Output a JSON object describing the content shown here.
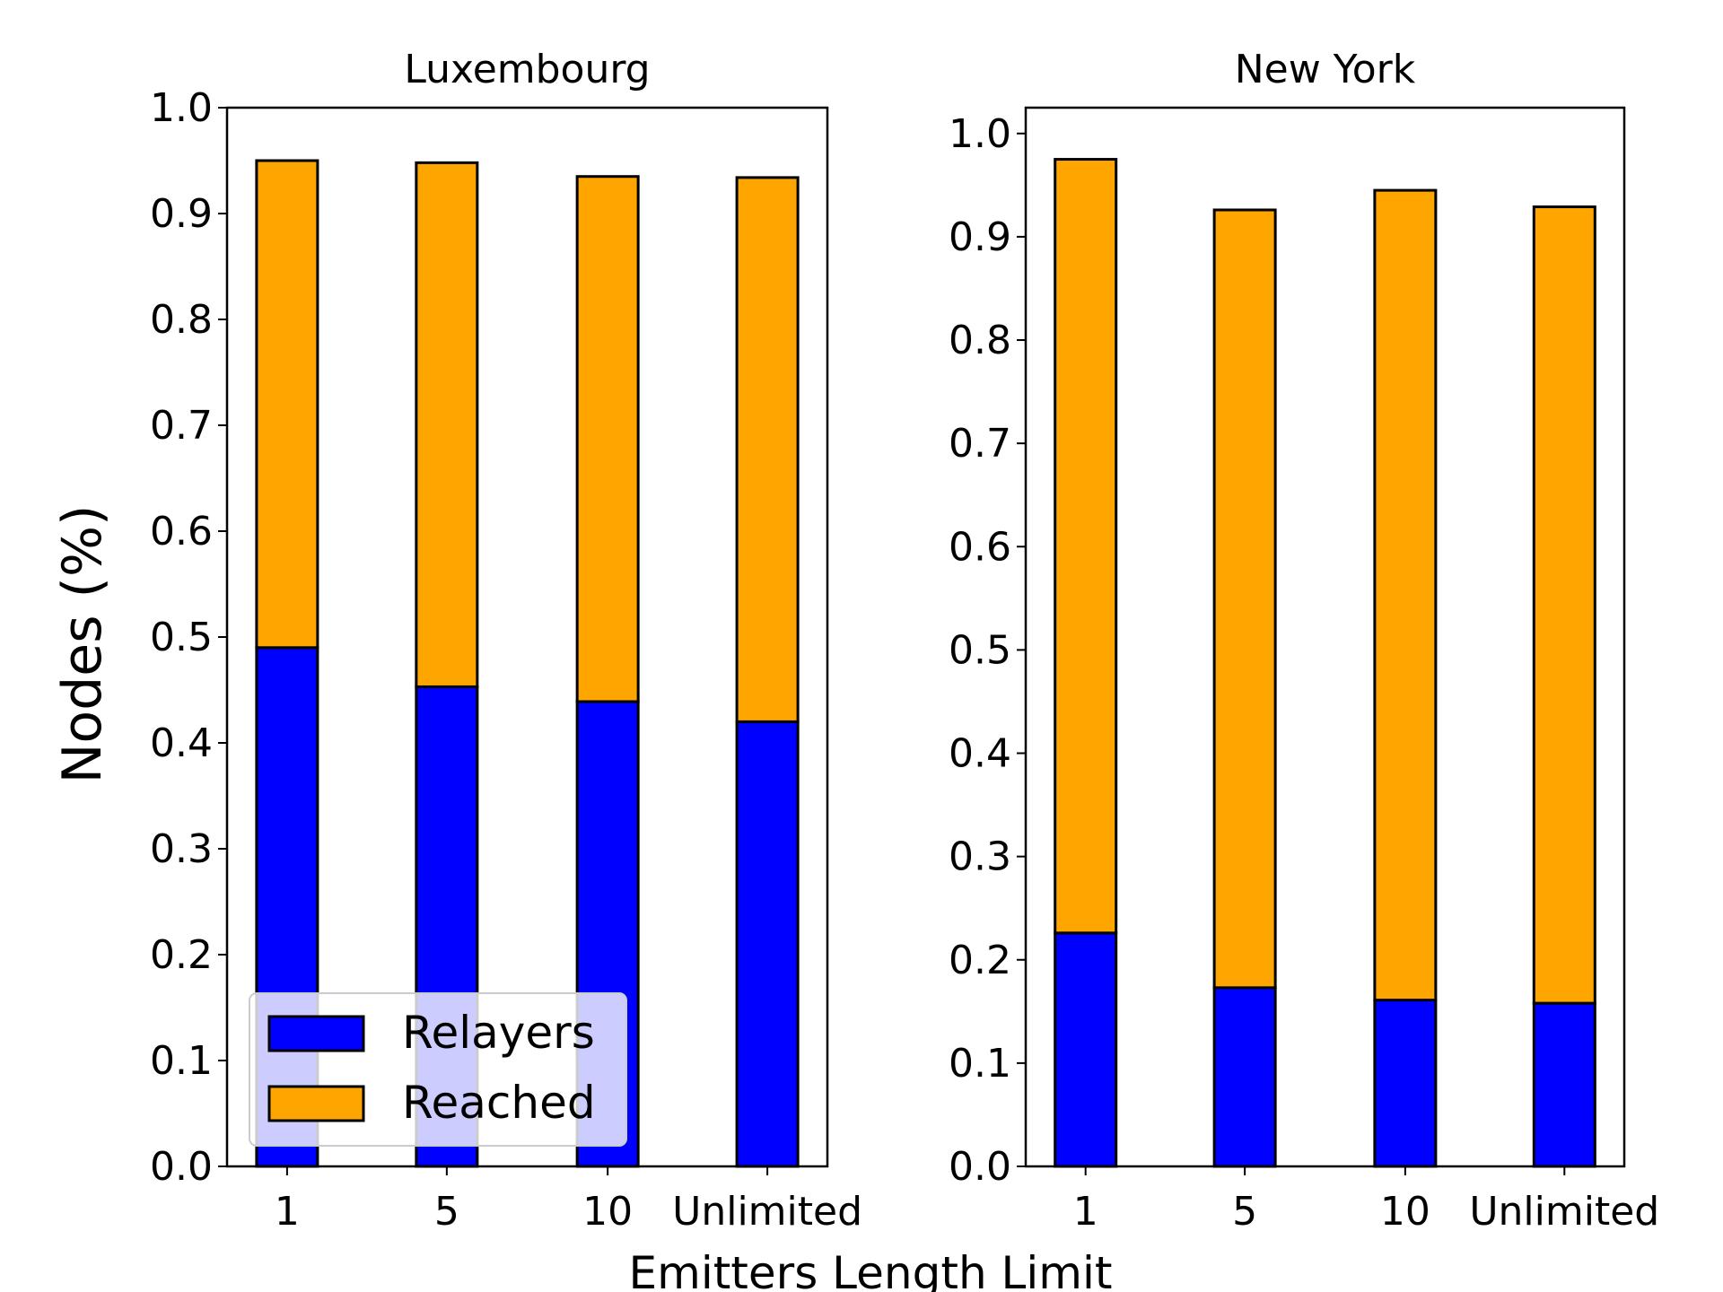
{
  "figure": {
    "xlabel": "Emitters Length Limit",
    "ylabel": "Nodes (%)"
  },
  "colors": {
    "relayers": "#0000ff",
    "reached": "#ffa500",
    "edge": "#000000"
  },
  "legend": {
    "placement": "lower-left of first panel",
    "items": [
      "Relayers",
      "Reached"
    ]
  },
  "chart_data": [
    {
      "type": "bar",
      "stacked": true,
      "title": "Luxembourg",
      "categories": [
        "1",
        "5",
        "10",
        "Unlimited"
      ],
      "series": [
        {
          "name": "Relayers",
          "values": [
            0.49,
            0.453,
            0.439,
            0.42
          ]
        },
        {
          "name": "Reached",
          "values": [
            0.46,
            0.495,
            0.496,
            0.514
          ]
        }
      ],
      "totals": [
        0.95,
        0.948,
        0.935,
        0.934
      ],
      "ylim": [
        0.0,
        1.0
      ],
      "yticks": [
        "0.0",
        "0.1",
        "0.2",
        "0.3",
        "0.4",
        "0.5",
        "0.6",
        "0.7",
        "0.8",
        "0.9",
        "1.0"
      ],
      "grid": false
    },
    {
      "type": "bar",
      "stacked": true,
      "title": "New York",
      "categories": [
        "1",
        "5",
        "10",
        "Unlimited"
      ],
      "series": [
        {
          "name": "Relayers",
          "values": [
            0.226,
            0.173,
            0.161,
            0.158
          ]
        },
        {
          "name": "Reached",
          "values": [
            0.749,
            0.753,
            0.784,
            0.771
          ]
        }
      ],
      "totals": [
        0.975,
        0.926,
        0.945,
        0.929
      ],
      "ylim": [
        0.0,
        1.025
      ],
      "yticks": [
        "0.0",
        "0.1",
        "0.2",
        "0.3",
        "0.4",
        "0.5",
        "0.6",
        "0.7",
        "0.8",
        "0.9",
        "1.0"
      ],
      "grid": false
    }
  ]
}
